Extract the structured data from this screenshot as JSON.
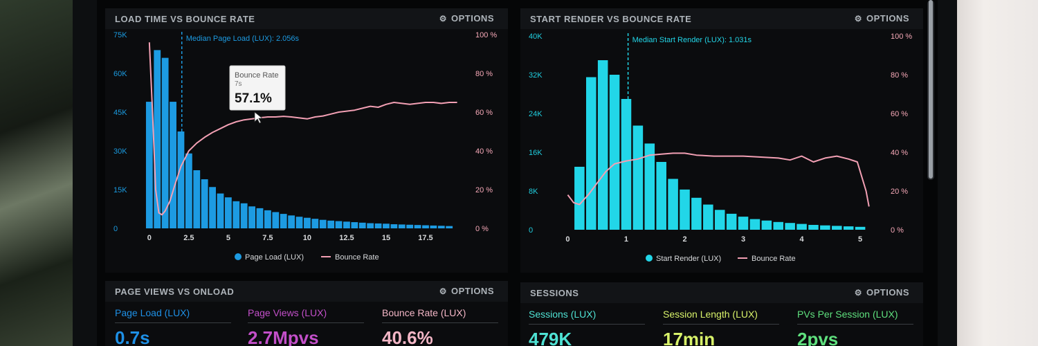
{
  "colors": {
    "bar_blue": "#1d9be2",
    "bar_cyan": "#22d6e8",
    "bounce_line": "#f3a0b4",
    "right_axis_pink": "#f7a9b8",
    "left_axis_blue": "#1b9be0",
    "left_axis_cyan": "#20cfe0",
    "blue": "#1e90e6",
    "purple": "#c34fc9",
    "pink": "#f3b6c6",
    "cyan": "#4fe2d4",
    "yellow": "#d8f26a",
    "green": "#5fe07e"
  },
  "panels": {
    "load": {
      "title": "LOAD TIME VS BOUNCE RATE",
      "options": "OPTIONS",
      "icon": "gear-icon",
      "median_label": "Median Page Load (LUX): 2.056s",
      "tooltip": {
        "title": "Bounce Rate",
        "sub": "7s",
        "value": "57.1%"
      },
      "legend": {
        "bars": "Page Load (LUX)",
        "line": "Bounce Rate"
      }
    },
    "render": {
      "title": "START RENDER VS BOUNCE RATE",
      "options": "OPTIONS",
      "icon": "gear-icon",
      "median_label": "Median Start Render (LUX): 1.031s",
      "legend": {
        "bars": "Start Render (LUX)",
        "line": "Bounce Rate"
      }
    },
    "pageviews": {
      "title": "PAGE VIEWS VS ONLOAD",
      "options": "OPTIONS",
      "icon": "gear-icon",
      "stats": [
        {
          "label": "Page Load (LUX)",
          "value": "0.7s"
        },
        {
          "label": "Page Views (LUX)",
          "value": "2.7Mpvs"
        },
        {
          "label": "Bounce Rate (LUX)",
          "value": "40.6%"
        }
      ]
    },
    "sessions": {
      "title": "SESSIONS",
      "options": "OPTIONS",
      "icon": "gear-icon",
      "stats": [
        {
          "label": "Sessions (LUX)",
          "value": "479K"
        },
        {
          "label": "Session Length (LUX)",
          "value": "17min"
        },
        {
          "label": "PVs Per Session (LUX)",
          "value": "2pvs"
        }
      ]
    }
  },
  "chart_data": [
    {
      "type": "bar",
      "title": "LOAD TIME VS BOUNCE RATE",
      "x_ticks": [
        "0",
        "2.5",
        "5",
        "7.5",
        "10",
        "12.5",
        "15",
        "17.5"
      ],
      "x_tick_values": [
        0,
        2.5,
        5,
        7.5,
        10,
        12.5,
        15,
        17.5
      ],
      "xlim": [
        -0.3,
        20
      ],
      "y_ticks": [
        "0",
        "15K",
        "30K",
        "45K",
        "60K",
        "75K"
      ],
      "ylim": [
        0,
        75000
      ],
      "y2_ticks": [
        "0 %",
        "20 %",
        "40 %",
        "60 %",
        "80 %",
        "100 %"
      ],
      "y2lim": [
        0,
        100
      ],
      "bar_width": 0.5,
      "series": [
        {
          "name": "Page Load (LUX)",
          "kind": "bar",
          "x": [
            0,
            0.5,
            1,
            1.5,
            2,
            2.5,
            3,
            3.5,
            4,
            4.5,
            5,
            5.5,
            6,
            6.5,
            7,
            7.5,
            8,
            8.5,
            9,
            9.5,
            10,
            10.5,
            11,
            11.5,
            12,
            12.5,
            13,
            13.5,
            14,
            14.5,
            15,
            15.5,
            16,
            16.5,
            17,
            17.5,
            18,
            18.5,
            19
          ],
          "values": [
            49000,
            69000,
            66000,
            49000,
            37500,
            29000,
            22500,
            19000,
            16000,
            13500,
            12000,
            10500,
            9700,
            8500,
            7800,
            7000,
            6300,
            5600,
            5000,
            4500,
            4100,
            3700,
            3300,
            3000,
            2800,
            2600,
            2400,
            2200,
            2000,
            1900,
            1800,
            1600,
            1500,
            1400,
            1300,
            1200,
            1100,
            1000,
            900
          ]
        },
        {
          "name": "Bounce Rate",
          "kind": "line",
          "axis": "right",
          "x": [
            0,
            0.2,
            0.4,
            0.6,
            0.8,
            1.0,
            1.3,
            1.6,
            2.0,
            2.5,
            3.0,
            3.5,
            4.0,
            4.5,
            5.0,
            5.5,
            6.0,
            6.5,
            7.0,
            7.5,
            8.0,
            8.5,
            9.0,
            9.5,
            10.0,
            10.5,
            11.0,
            11.5,
            12.0,
            12.5,
            13.0,
            13.5,
            14.0,
            14.5,
            15.0,
            15.5,
            16.0,
            16.5,
            17.0,
            17.5,
            18.0,
            18.5,
            19.0,
            19.5
          ],
          "values": [
            96,
            60,
            20,
            8,
            7,
            9,
            14,
            22,
            32,
            40,
            44,
            47,
            49.5,
            51.5,
            53.5,
            55,
            56,
            56.5,
            57.1,
            57.5,
            57.5,
            57.8,
            57.5,
            57,
            56.5,
            57.5,
            58,
            59,
            60,
            60.5,
            61,
            62,
            63,
            62.5,
            64,
            65,
            64.5,
            64,
            64.5,
            65,
            65,
            64.5,
            65,
            65
          ]
        }
      ],
      "median": 2.056,
      "legend_position": "bottom"
    },
    {
      "type": "bar",
      "title": "START RENDER VS BOUNCE RATE",
      "x_ticks": [
        "0",
        "1",
        "2",
        "3",
        "4",
        "5"
      ],
      "x_tick_values": [
        0,
        1,
        2,
        3,
        4,
        5
      ],
      "xlim": [
        -0.1,
        5.2
      ],
      "y_ticks": [
        "0",
        "8K",
        "16K",
        "24K",
        "32K",
        "40K"
      ],
      "ylim": [
        0,
        40000
      ],
      "y2_ticks": [
        "0 %",
        "20 %",
        "40 %",
        "60 %",
        "80 %",
        "100 %"
      ],
      "y2lim": [
        0,
        100
      ],
      "bar_width": 0.2,
      "series": [
        {
          "name": "Start Render (LUX)",
          "kind": "bar",
          "x": [
            0.2,
            0.4,
            0.6,
            0.8,
            1.0,
            1.2,
            1.4,
            1.6,
            1.8,
            2.0,
            2.2,
            2.4,
            2.6,
            2.8,
            3.0,
            3.2,
            3.4,
            3.6,
            3.8,
            4.0,
            4.2,
            4.4,
            4.6,
            4.8,
            5.0
          ],
          "values": [
            13000,
            31500,
            35000,
            32000,
            27000,
            21500,
            17800,
            14000,
            10500,
            8300,
            6600,
            5200,
            4100,
            3300,
            2700,
            2200,
            1900,
            1600,
            1400,
            1200,
            1000,
            900,
            800,
            700,
            600
          ]
        },
        {
          "name": "Bounce Rate",
          "kind": "line",
          "axis": "right",
          "x": [
            0,
            0.1,
            0.2,
            0.35,
            0.5,
            0.65,
            0.8,
            1.0,
            1.2,
            1.4,
            1.6,
            1.8,
            2.0,
            2.2,
            2.5,
            2.8,
            3.0,
            3.3,
            3.6,
            3.8,
            4.0,
            4.2,
            4.4,
            4.6,
            4.8,
            4.95,
            5.1,
            5.15
          ],
          "values": [
            18,
            14,
            13,
            18,
            24,
            30,
            34,
            35.5,
            36.5,
            38.5,
            39,
            39.5,
            39.5,
            38.5,
            38,
            38,
            38,
            37.5,
            37,
            36,
            38,
            35,
            37,
            38,
            36.5,
            35,
            20,
            12
          ]
        }
      ],
      "median": 1.031,
      "legend_position": "bottom"
    }
  ]
}
